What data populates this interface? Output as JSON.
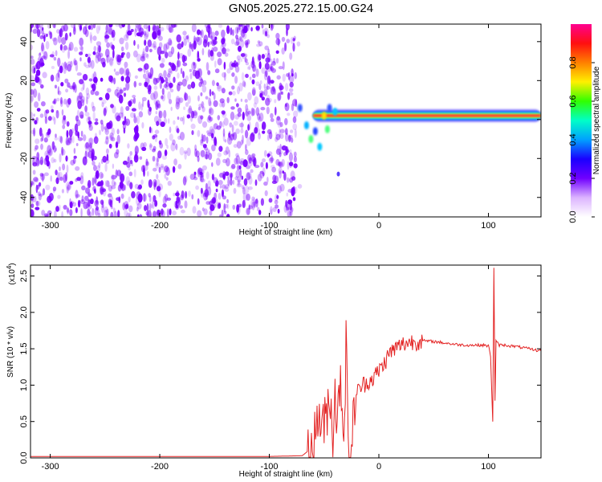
{
  "page_title": "GN05.2025.272.15.00.G24",
  "colors": {
    "speckle": "#7a00ff",
    "snr_line": "#e32222",
    "ridge_core": "#ff0044",
    "colorbar_stops": [
      "#ffffff",
      "#dcb4ff",
      "#7000ff",
      "#1a00ff",
      "#00a0ff",
      "#00ffc8",
      "#30ff00",
      "#fff000",
      "#ff8000",
      "#ff1010",
      "#ff0090"
    ]
  },
  "chart_data": [
    {
      "type": "heatmap",
      "title": "GN05.2025.272.15.00.G24",
      "xlabel": "Height of straight line (km)",
      "ylabel": "Frequency (Hz)",
      "xlim": [
        -318,
        148
      ],
      "ylim": [
        -50,
        49
      ],
      "xticks": [
        -300,
        -200,
        -100,
        0,
        100
      ],
      "yticks": [
        -40,
        -20,
        0,
        20,
        40
      ],
      "xtick_labels": [
        "-300",
        "-200",
        "-100",
        "0",
        "100"
      ],
      "ytick_labels": [
        "-40",
        "-20",
        "0",
        "20",
        "40"
      ],
      "noise_region_x": [
        -318,
        -75
      ],
      "ridge_frequency_hz": 2,
      "isolated_blob": {
        "x": -37,
        "y": -28
      },
      "colorbar": {
        "label": "Normalized spectral amplitude",
        "range": [
          0.0,
          1.0
        ],
        "ticks": [
          0.0,
          0.2,
          0.4,
          0.6,
          0.8
        ],
        "tick_labels": [
          "0.0",
          "0.2",
          "0.4",
          "0.6",
          "0.8"
        ]
      }
    },
    {
      "type": "line",
      "xlabel": "Height of straight line (km)",
      "ylabel": "SNR (10 * v/v)",
      "multiplier_label": "(x10",
      "multiplier_exp": "4",
      "multiplier_close": ")",
      "xlim": [
        -318,
        148
      ],
      "ylim": [
        0.0,
        2.65
      ],
      "xticks": [
        -300,
        -200,
        -100,
        0,
        100
      ],
      "yticks": [
        0.0,
        0.5,
        1.0,
        1.5,
        2.0,
        2.5
      ],
      "xtick_labels": [
        "-300",
        "-200",
        "-100",
        "0",
        "100"
      ],
      "ytick_labels": [
        "0.0",
        "0.5",
        "1.0",
        "1.5",
        "2.0",
        "2.5"
      ],
      "grid": false,
      "series": [
        {
          "color": "#e32222",
          "x": [
            -318,
            -250,
            -200,
            -150,
            -100,
            -70,
            -60,
            -55,
            -50,
            -45,
            -42,
            -40,
            -38,
            -35,
            -32,
            -30,
            -28,
            -25,
            -22,
            -20,
            -15,
            -10,
            -5,
            0,
            5,
            10,
            15,
            20,
            25,
            30,
            35,
            40,
            50,
            60,
            70,
            80,
            90,
            95,
            100,
            102,
            104,
            105,
            106,
            107,
            110,
            115,
            120,
            130,
            140,
            148
          ],
          "y": [
            0.02,
            0.02,
            0.02,
            0.02,
            0.02,
            0.03,
            0.15,
            0.6,
            0.4,
            0.9,
            0.3,
            1.0,
            0.4,
            1.2,
            0.3,
            1.55,
            0.3,
            0.05,
            0.8,
            0.9,
            1.0,
            1.05,
            1.1,
            1.2,
            1.3,
            1.45,
            1.5,
            1.55,
            1.58,
            1.6,
            1.6,
            1.61,
            1.6,
            1.58,
            1.56,
            1.55,
            1.55,
            1.55,
            1.54,
            1.4,
            0.5,
            2.6,
            0.8,
            1.6,
            1.55,
            1.55,
            1.54,
            1.52,
            1.49,
            1.47
          ]
        }
      ]
    }
  ]
}
